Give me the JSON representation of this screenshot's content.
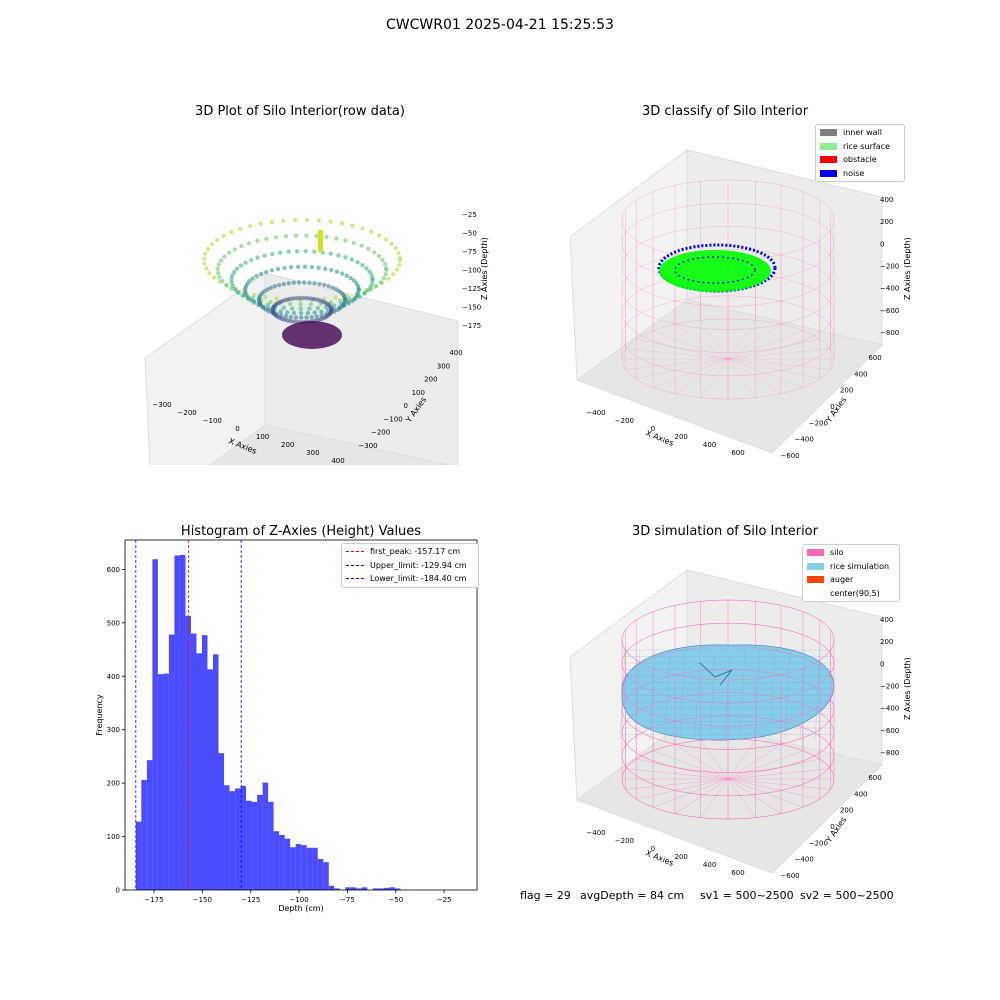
{
  "suptitle": "CWCWR01 2025-04-21 15:25:53",
  "panels": {
    "raw": {
      "title": "3D Plot of Silo Interior(row data)",
      "xlabel": "X Axies",
      "ylabel": "Y Axies",
      "zlabel": "Z Axies (Depth)",
      "xticks": [
        "−300",
        "−200",
        "−100",
        "0",
        "100",
        "200",
        "300",
        "400"
      ],
      "yticks": [
        "400",
        "300",
        "200",
        "100",
        "0",
        "−100",
        "−200",
        "−300"
      ],
      "zticks": [
        "−25",
        "−50",
        "−75",
        "−100",
        "−125",
        "−150",
        "−175"
      ]
    },
    "classify": {
      "title": "3D classify of Silo Interior",
      "xlabel": "X Axies",
      "ylabel": "Y Axies",
      "zlabel": "Z Axies (Depth)",
      "xticks": [
        "−400",
        "−200",
        "0",
        "200",
        "400",
        "600"
      ],
      "yticks": [
        "600",
        "400",
        "200",
        "0",
        "−200",
        "−400",
        "−600"
      ],
      "zticks": [
        "400",
        "200",
        "0",
        "−200",
        "−400",
        "−600",
        "−800"
      ],
      "legend": [
        {
          "label": "inner wall",
          "color": "#808080"
        },
        {
          "label": "rice surface",
          "color": "#90ee90"
        },
        {
          "label": "obstacle",
          "color": "#ff0000"
        },
        {
          "label": "noise",
          "color": "#0000ff"
        }
      ]
    },
    "simulation": {
      "title": "3D simulation of Silo Interior",
      "xlabel": "X Axies",
      "ylabel": "Y Axies",
      "zlabel": "Z Axies (Depth)",
      "xticks": [
        "−400",
        "−200",
        "0",
        "200",
        "400",
        "600"
      ],
      "yticks": [
        "600",
        "400",
        "200",
        "0",
        "−200",
        "−400",
        "−600"
      ],
      "zticks": [
        "400",
        "200",
        "0",
        "−200",
        "−400",
        "−600",
        "−800"
      ],
      "legend": [
        {
          "label": "silo",
          "color": "#ff69b4"
        },
        {
          "label": "rice simulation",
          "color": "#87ceeb"
        },
        {
          "label": "auger",
          "color": "#ff4500"
        },
        {
          "label": "center(90,5)",
          "color": ""
        }
      ]
    }
  },
  "status": {
    "flag": "flag = 29",
    "avg_depth": "avgDepth = 84 cm",
    "sv1": "sv1 = 500~2500",
    "sv2": "sv2 = 500~2500"
  },
  "chart_data": [
    {
      "type": "bar",
      "title": "Histogram of Z-Axies (Height) Values",
      "xlabel": "Depth (cm)",
      "ylabel": "Frequency",
      "xlim": [
        -190,
        -8
      ],
      "ylim": [
        0,
        655
      ],
      "xticks": [
        -175,
        -150,
        -125,
        -100,
        -75,
        -50,
        -25
      ],
      "yticks": [
        0,
        100,
        200,
        300,
        400,
        500,
        600
      ],
      "bar_color": "#0000ff",
      "bin_start": -184.4,
      "bin_width": 2.85,
      "values": [
        128,
        206,
        243,
        619,
        404,
        405,
        478,
        626,
        627,
        513,
        480,
        443,
        477,
        413,
        441,
        256,
        196,
        185,
        190,
        195,
        167,
        165,
        178,
        201,
        165,
        110,
        103,
        96,
        80,
        86,
        84,
        79,
        79,
        58,
        52,
        8,
        3,
        0,
        5,
        5,
        3,
        5,
        0,
        3,
        3,
        4,
        5,
        3,
        0
      ],
      "vlines": [
        {
          "x": -157.17,
          "color": "#ff0000",
          "label": "first_peak: -157.17 cm"
        },
        {
          "x": -129.94,
          "color": "#0000ff",
          "label": "Upper_limit: -129.94 cm"
        },
        {
          "x": -184.4,
          "color": "#0000ff",
          "label": "Lower_limit: -184.40 cm"
        }
      ],
      "legend_position": "top-right",
      "grid": false
    }
  ]
}
